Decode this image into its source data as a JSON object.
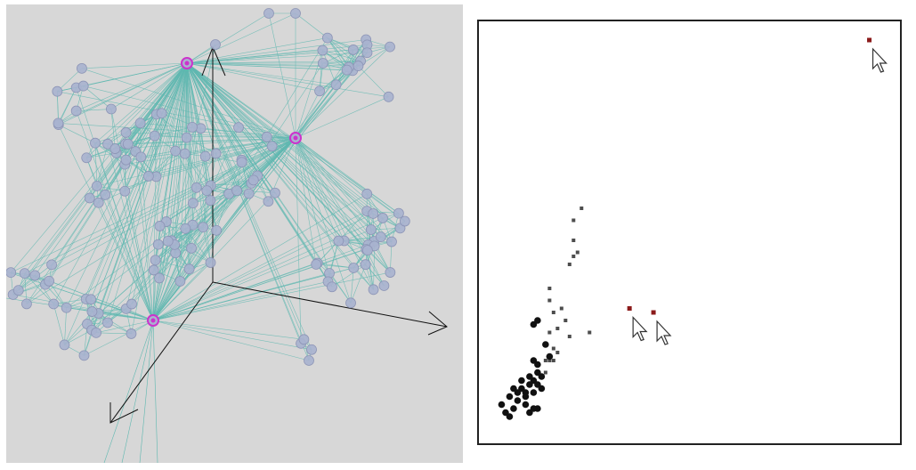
{
  "graph_view": {
    "colors": {
      "background": "#d7d7d7",
      "edge": "#5fb8b0",
      "node_fill": "#a9b2cf",
      "node_stroke": "#8d95b6",
      "highlight": "#cc33cc",
      "axis": "#111111"
    }
  },
  "scatter_view": {
    "colors": {
      "frame": "#222222",
      "point": "#111111",
      "selected_point": "#8b1a1a",
      "cursor_fill": "#ffffff",
      "cursor_stroke": "#333333"
    }
  },
  "chart_data": {
    "type": "scatter",
    "title": "",
    "xlabel": "",
    "ylabel": "",
    "xlim": [
      0,
      100
    ],
    "ylim": [
      0,
      100
    ],
    "grid": false,
    "series": [
      {
        "role": "cluster-large",
        "points": [
          [
            6,
            11
          ],
          [
            7,
            10
          ],
          [
            8,
            11
          ],
          [
            9,
            10
          ],
          [
            8,
            13
          ],
          [
            10,
            12
          ],
          [
            11,
            13
          ],
          [
            12,
            12
          ],
          [
            10,
            14
          ],
          [
            12,
            15
          ],
          [
            13,
            14
          ],
          [
            9,
            9
          ],
          [
            7,
            8
          ],
          [
            11,
            10
          ],
          [
            13,
            11
          ],
          [
            4,
            5
          ],
          [
            5,
            4
          ],
          [
            6,
            6
          ],
          [
            9,
            7
          ],
          [
            3,
            7
          ],
          [
            5,
            9
          ],
          [
            10,
            5
          ],
          [
            12,
            6
          ],
          [
            12,
            17
          ],
          [
            11,
            18
          ],
          [
            14,
            22
          ],
          [
            12,
            28
          ],
          [
            11,
            27
          ],
          [
            15,
            19
          ],
          [
            11,
            6
          ]
        ]
      },
      {
        "role": "cluster-small",
        "points": [
          [
            14,
            18
          ],
          [
            15,
            18
          ],
          [
            16,
            18
          ],
          [
            14,
            15
          ],
          [
            17,
            20
          ],
          [
            16,
            21
          ],
          [
            15,
            25
          ],
          [
            17,
            26
          ],
          [
            16,
            30
          ],
          [
            19,
            28
          ],
          [
            18,
            31
          ],
          [
            15,
            33
          ],
          [
            20,
            24
          ],
          [
            21,
            44
          ],
          [
            22,
            45
          ],
          [
            21,
            48
          ],
          [
            20,
            42
          ],
          [
            23,
            56
          ],
          [
            21,
            53
          ],
          [
            25,
            25
          ],
          [
            15,
            36
          ]
        ]
      },
      {
        "role": "selected",
        "points": [
          [
            35,
            31
          ],
          [
            41,
            30
          ],
          [
            95,
            98
          ]
        ]
      }
    ]
  }
}
